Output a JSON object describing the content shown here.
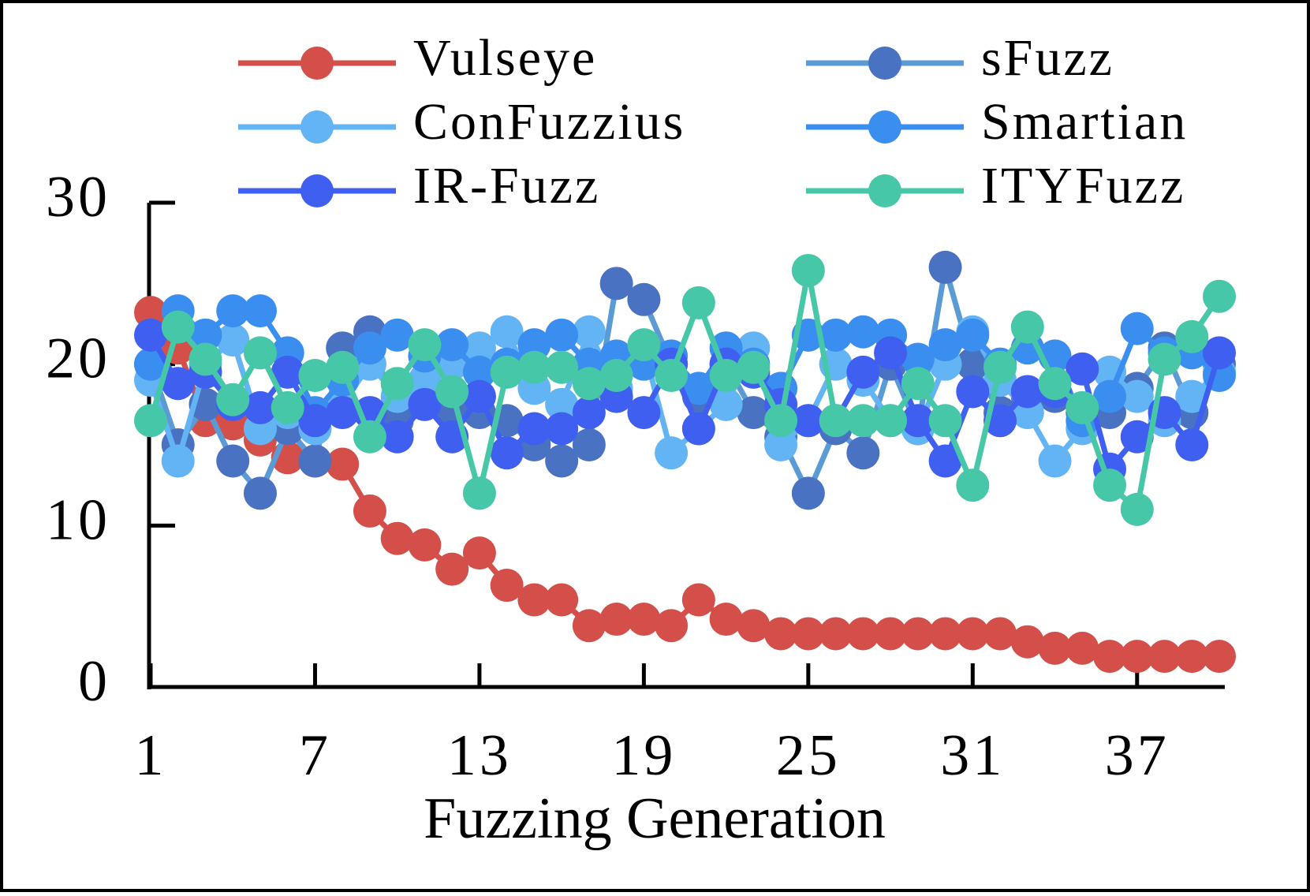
{
  "chart_data": {
    "type": "line",
    "x_label": "Fuzzing Generation",
    "x": [
      1,
      2,
      3,
      4,
      5,
      6,
      7,
      8,
      9,
      10,
      11,
      12,
      13,
      14,
      15,
      16,
      17,
      18,
      19,
      20,
      21,
      22,
      23,
      24,
      25,
      26,
      27,
      28,
      29,
      30,
      31,
      32,
      33,
      34,
      35,
      36,
      37,
      38,
      39,
      40
    ],
    "xlim": [
      1,
      40
    ],
    "xticks": [
      1,
      7,
      13,
      19,
      25,
      31,
      37
    ],
    "ylim": [
      0,
      30
    ],
    "yticks": [
      0,
      10,
      20,
      30
    ],
    "legend": "top",
    "series": [
      {
        "name": "Vulseye",
        "color": "#d44f4a",
        "values": [
          23.2,
          21,
          16.5,
          16.3,
          15.3,
          14.2,
          14,
          13.8,
          10.9,
          9.2,
          8.8,
          7.3,
          8.3,
          6.3,
          5.4,
          5.4,
          3.8,
          4.2,
          4.2,
          3.8,
          5.4,
          4.2,
          3.8,
          3.3,
          3.3,
          3.3,
          3.3,
          3.3,
          3.3,
          3.3,
          3.3,
          3.3,
          2.8,
          2.4,
          2.4,
          1.9,
          1.9,
          1.9,
          1.9,
          1.9
        ]
      },
      {
        "name": "sFuzz",
        "color": "#4a72c2",
        "line_color": "#5b9bd5",
        "values": [
          20,
          15,
          17.5,
          14,
          12,
          16,
          14,
          21,
          22,
          16.5,
          18,
          17,
          17,
          16.5,
          15,
          14,
          15,
          25,
          24,
          20,
          18,
          20,
          17,
          15.5,
          12,
          16,
          14.5,
          20,
          16,
          26,
          20,
          17,
          18,
          18,
          17,
          17,
          18.5,
          21,
          17,
          20
        ]
      },
      {
        "name": "ConFuzzius",
        "color": "#62b4f5",
        "values": [
          19,
          14,
          20,
          21.5,
          16,
          17,
          16,
          17.5,
          20,
          18,
          19,
          20,
          21,
          22,
          18.5,
          17.5,
          22,
          18.5,
          21,
          14.5,
          16,
          17.5,
          21,
          15,
          16.5,
          20,
          19,
          16.5,
          16,
          20,
          22,
          19,
          17,
          14,
          16,
          19.5,
          18,
          16.5,
          18,
          19.5
        ]
      },
      {
        "name": "Smartian",
        "color": "#3a8ef0",
        "values": [
          20,
          23.3,
          21.8,
          23.3,
          23.3,
          20.7,
          17,
          19,
          21,
          21.8,
          20.5,
          21.2,
          19.5,
          20,
          21.2,
          21.8,
          20,
          20.5,
          20,
          20.5,
          18.5,
          21,
          20,
          18.5,
          21.8,
          21.8,
          22,
          21.8,
          20.3,
          21.2,
          21.8,
          20,
          21,
          20.5,
          16.5,
          18,
          22.2,
          20.7,
          20.7,
          19.3
        ]
      },
      {
        "name": "IR-Fuzz",
        "color": "#3f5ff0",
        "values": [
          21.8,
          18.8,
          19.5,
          17.5,
          17.3,
          19.5,
          16.5,
          17,
          17,
          15.5,
          17.5,
          15.5,
          18,
          14.5,
          16,
          16,
          17,
          18,
          17,
          20,
          16,
          20,
          19.5,
          17.5,
          16.5,
          16.5,
          19.5,
          20.7,
          16.5,
          14,
          18.3,
          16.5,
          18.3,
          18.3,
          19.7,
          13.5,
          15.5,
          17,
          15,
          20.7
        ]
      },
      {
        "name": "ITYFuzz",
        "color": "#46c8a8",
        "values": [
          16.5,
          22.3,
          20.3,
          17.8,
          20.7,
          17.3,
          19.3,
          19.8,
          15.5,
          18.8,
          21.2,
          18.3,
          12,
          19.5,
          19.8,
          19.8,
          18.8,
          19.3,
          21.2,
          19.3,
          23.8,
          19.3,
          19.8,
          16.5,
          25.8,
          16.5,
          16.5,
          16.5,
          18.8,
          16.5,
          12.5,
          19.8,
          22.3,
          18.8,
          17.3,
          12.5,
          11,
          20.3,
          21.7,
          24.2
        ]
      }
    ]
  }
}
